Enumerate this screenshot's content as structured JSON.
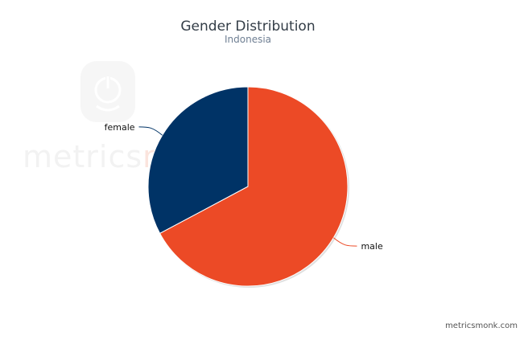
{
  "chart_data": {
    "type": "pie",
    "title": "Gender Distribution",
    "subtitle": "Indonesia",
    "slices": [
      {
        "label": "male",
        "value": 67.2,
        "color": "#ec4a26"
      },
      {
        "label": "female",
        "value": 32.8,
        "color": "#003366"
      }
    ]
  },
  "watermark": {
    "prefix": "metrics",
    "suffix": "monk",
    "prefix_color": "#f2f2f2",
    "suffix_color": "#fbe4dd",
    "icon": "power-icon"
  },
  "credit": "metricsmonk.com"
}
